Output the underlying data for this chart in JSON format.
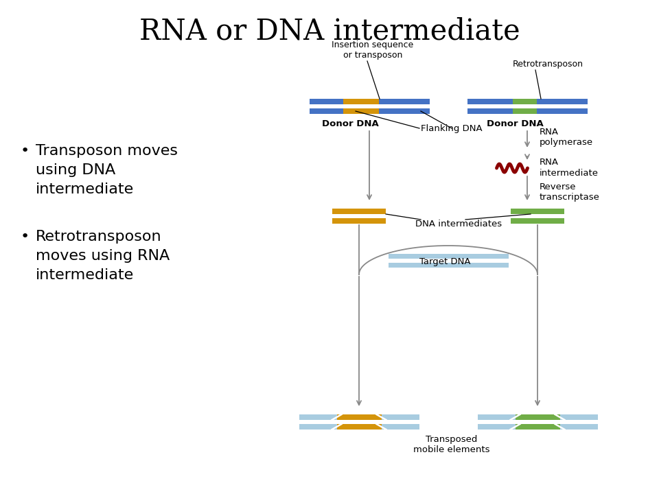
{
  "title": "RNA or DNA intermediate",
  "bullet1": "Transposon moves\nusing DNA\nintermediate",
  "bullet2": "Retrotransposon\nmoves using RNA\nintermediate",
  "colors": {
    "blue_dna": "#4472c4",
    "orange_insert": "#d4940a",
    "green_insert": "#70ad47",
    "red_rna": "#8b0000",
    "light_blue": "#a8cce0",
    "arrow": "#888888",
    "text": "#000000",
    "background": "#ffffff"
  },
  "labels": {
    "insertion_label": "Insertion sequence\nor transposon",
    "retrotransposon_label": "Retrotransposon",
    "donor_dna_left": "Donor DNA",
    "flanking_dna": "Flanking DNA",
    "donor_dna_right": "Donor DNA",
    "rna_polymerase": "RNA\npolymerase",
    "rna_intermediate": "RNA\nintermediate",
    "reverse_transcriptase": "Reverse\ntranscriptase",
    "dna_intermediates": "DNA intermediates",
    "target_dna": "Target DNA",
    "transposed": "Transposed\nmobile elements"
  }
}
